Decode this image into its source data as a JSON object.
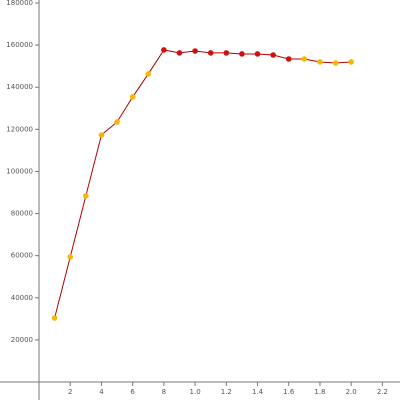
{
  "chart_data": {
    "type": "line",
    "x": [
      1,
      2,
      3,
      4,
      5,
      6,
      7,
      8,
      9,
      10,
      11,
      12,
      13,
      14,
      15,
      16,
      17,
      18,
      19,
      20
    ],
    "series": [
      {
        "color": "#b00000",
        "values": [
          30400,
          59400,
          88400,
          117300,
          123500,
          135400,
          146300,
          157700,
          156300,
          157200,
          156300,
          156300,
          155800,
          155800,
          155300,
          153400,
          153400,
          152000,
          151500,
          152000
        ],
        "point_colors": [
          "#f5b800",
          "#f5b800",
          "#f5b800",
          "#f5b800",
          "#f5b800",
          "#f5b800",
          "#f5b800",
          "#d01010",
          "#d01010",
          "#d01010",
          "#d01010",
          "#d01010",
          "#d01010",
          "#d01010",
          "#d01010",
          "#d01010",
          "#f5b800",
          "#f5b800",
          "#f5b800",
          "#f5b800"
        ]
      }
    ],
    "xlim": [
      -2.5,
      23
    ],
    "ylim": [
      0,
      180000
    ],
    "xticks": [
      2,
      4,
      6,
      8,
      {
        "value": 10,
        "label": "1.0"
      },
      {
        "value": 12,
        "label": "1.2"
      },
      {
        "value": 14,
        "label": "1.4"
      },
      {
        "value": 16,
        "label": "1.6"
      },
      {
        "value": 18,
        "label": "1.8"
      },
      {
        "value": 20,
        "label": "2.0"
      },
      {
        "value": 22,
        "label": "2.2"
      }
    ],
    "yticks": [
      20000,
      40000,
      60000,
      80000,
      100000,
      120000,
      140000,
      160000,
      180000
    ]
  }
}
